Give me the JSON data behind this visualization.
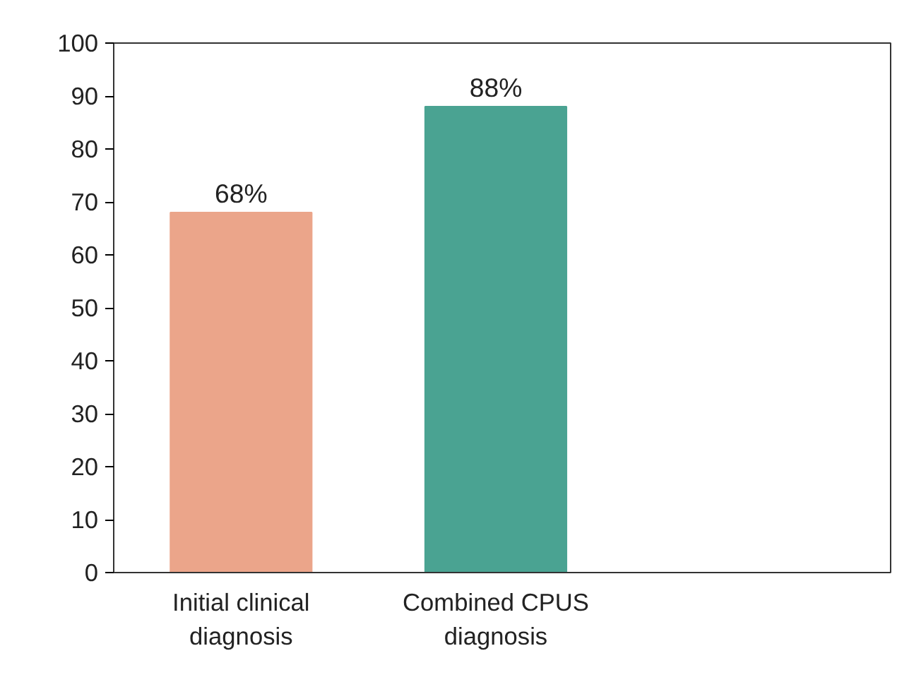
{
  "chart_data": {
    "type": "bar",
    "categories": [
      "Initial clinical\ndiagnosis",
      "Combined CPUS\ndiagnosis"
    ],
    "values": [
      68,
      88
    ],
    "colors": [
      "#eba58a",
      "#4aa392"
    ],
    "value_labels": [
      "68%",
      "88%"
    ],
    "ylim": [
      0,
      100
    ],
    "yticks": [
      0,
      10,
      20,
      30,
      40,
      50,
      60,
      70,
      80,
      90,
      100
    ]
  }
}
